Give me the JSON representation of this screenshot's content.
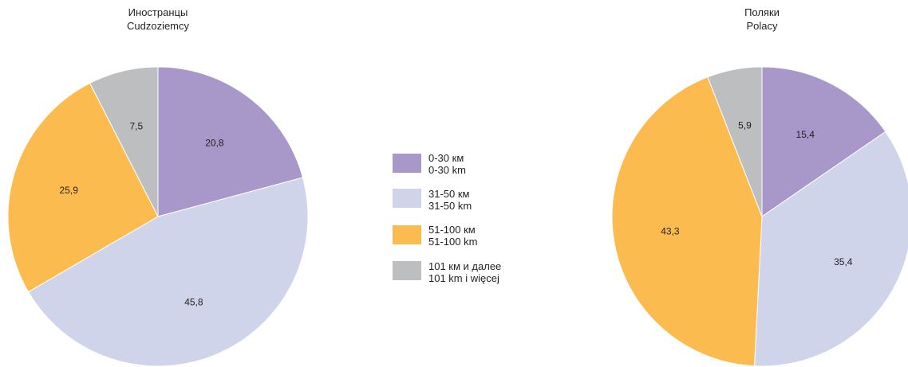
{
  "legend": [
    {
      "label_ru": "0-30 км",
      "label_pl": "0-30 km",
      "color": "#a898c9"
    },
    {
      "label_ru": "31-50 км",
      "label_pl": "31-50 km",
      "color": "#d0d4eb"
    },
    {
      "label_ru": "51-100 км",
      "label_pl": "51-100 km",
      "color": "#fbbb4e"
    },
    {
      "label_ru": "101 км и далее",
      "label_pl": "101 km i więcej",
      "color": "#bcbec0"
    }
  ],
  "chart_data": [
    {
      "type": "pie",
      "title": "Иностранцы",
      "subtitle": "Cudzoziemcy",
      "categories": [
        "0-30 км",
        "31-50 км",
        "51-100 км",
        "101 км и далее"
      ],
      "values": [
        20.8,
        45.8,
        25.9,
        7.5
      ],
      "value_labels": [
        "20,8",
        "45,8",
        "25,9",
        "7,5"
      ]
    },
    {
      "type": "pie",
      "title": "Поляки",
      "subtitle": "Polacy",
      "categories": [
        "0-30 км",
        "31-50 км",
        "51-100 км",
        "101 км и далее"
      ],
      "values": [
        15.4,
        35.4,
        43.3,
        5.9
      ],
      "value_labels": [
        "15,4",
        "35,4",
        "43,3",
        "5,9"
      ]
    }
  ]
}
